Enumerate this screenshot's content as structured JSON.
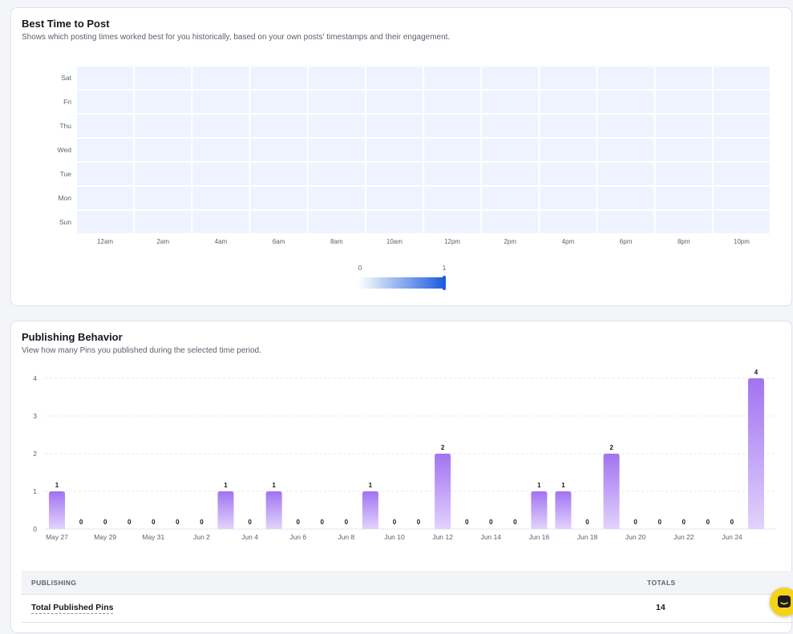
{
  "best_time": {
    "title": "Best Time to Post",
    "subtitle": "Shows which posting times worked best for you historically, based on your own posts' timestamps and their engagement.",
    "days": [
      "Sat",
      "Fri",
      "Thu",
      "Wed",
      "Tue",
      "Mon",
      "Sun"
    ],
    "hour_labels": [
      "12am",
      "2am",
      "4am",
      "6am",
      "8am",
      "10am",
      "12pm",
      "2pm",
      "4pm",
      "6pm",
      "8pm",
      "10pm"
    ],
    "legend_min": "0",
    "legend_max": "1",
    "colors": {
      "cell": "#eef4ff",
      "scale_start": "#ffffff",
      "scale_end": "#1f5ede"
    }
  },
  "publishing": {
    "title": "Publishing Behavior",
    "subtitle": "View how many Pins you published during the selected time period.",
    "table": {
      "col_publishing": "PUBLISHING",
      "col_totals": "TOTALS",
      "row_label": "Total Published Pins",
      "row_value": "14"
    }
  },
  "chart_data": {
    "type": "bar",
    "categories": [
      "May 27",
      "May 28",
      "May 29",
      "May 30",
      "May 31",
      "Jun 1",
      "Jun 2",
      "Jun 3",
      "Jun 4",
      "Jun 5",
      "Jun 6",
      "Jun 7",
      "Jun 8",
      "Jun 9",
      "Jun 10",
      "Jun 11",
      "Jun 12",
      "Jun 13",
      "Jun 14",
      "Jun 15",
      "Jun 16",
      "Jun 17",
      "Jun 18",
      "Jun 19",
      "Jun 20",
      "Jun 21",
      "Jun 22",
      "Jun 23",
      "Jun 24",
      "Jun 25"
    ],
    "tick_labels": [
      "May 27",
      "May 29",
      "May 31",
      "Jun 2",
      "Jun 4",
      "Jun 6",
      "Jun 8",
      "Jun 10",
      "Jun 12",
      "Jun 14",
      "Jun 16",
      "Jun 18",
      "Jun 20",
      "Jun 22",
      "Jun 24"
    ],
    "values": [
      1,
      0,
      0,
      0,
      0,
      0,
      0,
      1,
      0,
      1,
      0,
      0,
      0,
      1,
      0,
      0,
      2,
      0,
      0,
      0,
      1,
      1,
      0,
      2,
      0,
      0,
      0,
      0,
      0,
      4
    ],
    "y_ticks": [
      "0",
      "1",
      "2",
      "3",
      "4"
    ],
    "ylim": [
      0,
      4
    ],
    "grid": true,
    "colors": {
      "bar_top": "#a173f1",
      "bar_bottom": "#e2d3fc"
    }
  }
}
